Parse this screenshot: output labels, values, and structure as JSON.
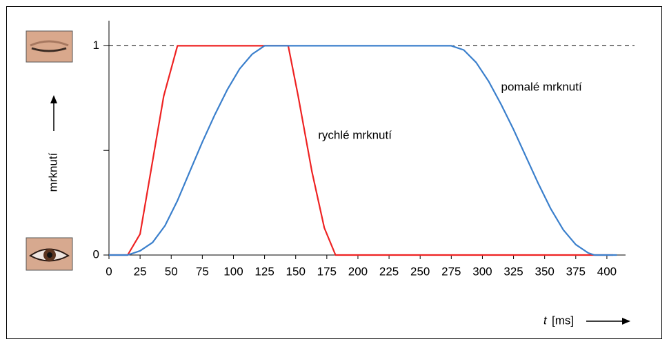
{
  "chart_data": {
    "type": "line",
    "x_label_symbol": "t",
    "x_label_unit": "[ms]",
    "y_label": "mrknutí",
    "xlim": [
      0,
      415
    ],
    "xticks": [
      0,
      25,
      50,
      75,
      100,
      125,
      150,
      175,
      200,
      225,
      250,
      275,
      300,
      325,
      350,
      375,
      400
    ],
    "ylim": [
      0,
      1.12
    ],
    "yticks": [
      0,
      1
    ],
    "yminor_ticks": [
      0.5
    ],
    "hline": 1,
    "series": [
      {
        "name": "rychlé mrknutí",
        "color": "#ee2222",
        "x": [
          0,
          15,
          25,
          44,
          55,
          144,
          152,
          163,
          173,
          182,
          405
        ],
        "values": [
          0,
          0,
          0.1,
          0.76,
          1,
          1,
          0.76,
          0.4,
          0.13,
          0,
          0
        ],
        "label_at": [
          168,
          0.57
        ]
      },
      {
        "name": "pomalé mrknutí",
        "color": "#3a7fcc",
        "x": [
          0,
          15,
          25,
          35,
          45,
          55,
          65,
          75,
          85,
          95,
          105,
          115,
          125,
          275,
          285,
          295,
          305,
          315,
          325,
          335,
          345,
          355,
          365,
          375,
          385,
          390,
          408
        ],
        "values": [
          0,
          0,
          0.02,
          0.06,
          0.14,
          0.26,
          0.4,
          0.54,
          0.67,
          0.79,
          0.89,
          0.96,
          1,
          1,
          0.98,
          0.92,
          0.83,
          0.72,
          0.6,
          0.47,
          0.34,
          0.22,
          0.12,
          0.05,
          0.01,
          0,
          0
        ],
        "label_at": [
          315,
          0.8
        ]
      }
    ]
  }
}
